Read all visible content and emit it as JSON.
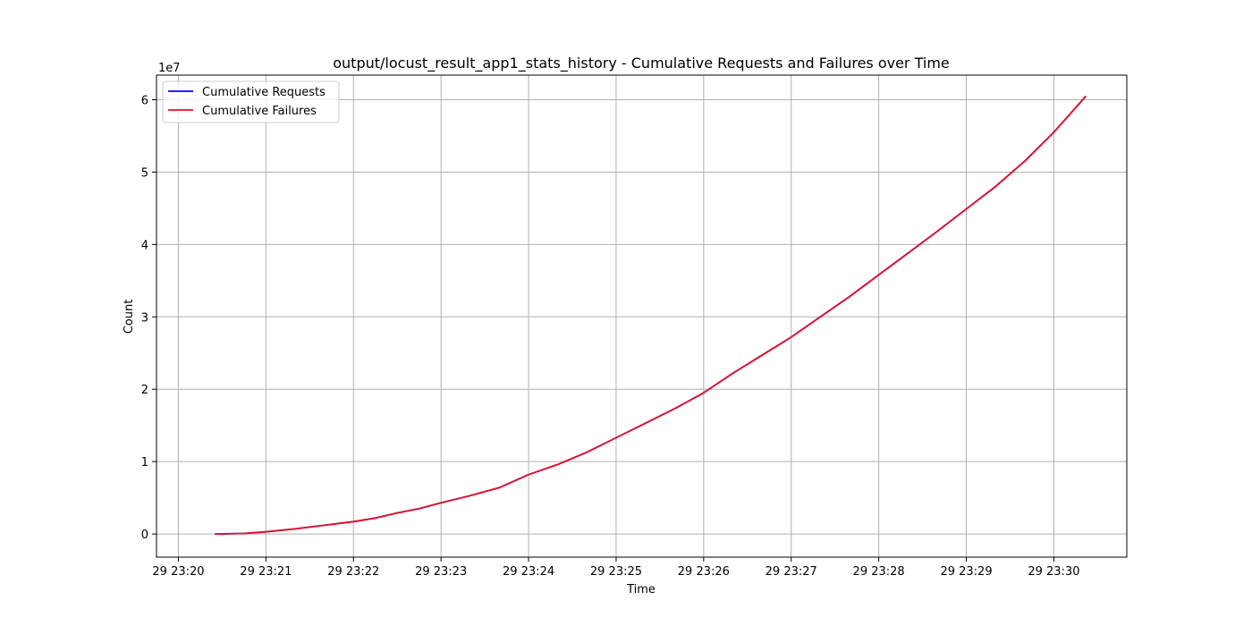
{
  "chart_data": {
    "type": "line",
    "title": "output/locust_result_app1_stats_history - Cumulative Requests and Failures over Time",
    "xlabel": "Time",
    "ylabel": "Count",
    "y_offset_label": "1e7",
    "grid": true,
    "legend_position": "top-left",
    "x_ticks": [
      "29 23:20",
      "29 23:21",
      "29 23:22",
      "29 23:23",
      "29 23:24",
      "29 23:25",
      "29 23:26",
      "29 23:27",
      "29 23:28",
      "29 23:29",
      "29 23:30"
    ],
    "y_ticks": [
      "0",
      "1",
      "2",
      "3",
      "4",
      "5",
      "6"
    ],
    "x": [
      "23:20:25",
      "23:20:45",
      "23:21:00",
      "23:21:20",
      "23:21:40",
      "23:22:00",
      "23:22:15",
      "23:22:30",
      "23:22:45",
      "23:23:00",
      "23:23:20",
      "23:23:40",
      "23:24:00",
      "23:24:20",
      "23:24:40",
      "23:25:00",
      "23:25:20",
      "23:25:40",
      "23:26:00",
      "23:26:20",
      "23:26:40",
      "23:27:00",
      "23:27:20",
      "23:27:40",
      "23:28:00",
      "23:28:20",
      "23:28:40",
      "23:29:00",
      "23:29:20",
      "23:29:40",
      "23:30:00",
      "23:30:22"
    ],
    "xlim": [
      "23:19:45",
      "23:30:50"
    ],
    "ylim": [
      -3200000,
      63400000
    ],
    "series": [
      {
        "name": "Cumulative Requests",
        "color": "#0000ff",
        "values": [
          0,
          80000,
          300000,
          700000,
          1200000,
          1700000,
          2200000,
          2900000,
          3500000,
          4300000,
          5300000,
          6400000,
          8200000,
          9600000,
          11300000,
          13300000,
          15300000,
          17300000,
          19500000,
          22200000,
          24700000,
          27200000,
          30000000,
          32800000,
          35800000,
          38800000,
          41800000,
          44900000,
          48000000,
          51500000,
          55500000,
          60500000
        ]
      },
      {
        "name": "Cumulative Failures",
        "color": "#e8101f",
        "values": [
          0,
          80000,
          300000,
          700000,
          1200000,
          1700000,
          2200000,
          2900000,
          3500000,
          4300000,
          5300000,
          6400000,
          8200000,
          9600000,
          11300000,
          13300000,
          15300000,
          17300000,
          19500000,
          22200000,
          24700000,
          27200000,
          30000000,
          32800000,
          35800000,
          38800000,
          41800000,
          44900000,
          48000000,
          51500000,
          55500000,
          60500000
        ]
      }
    ]
  }
}
